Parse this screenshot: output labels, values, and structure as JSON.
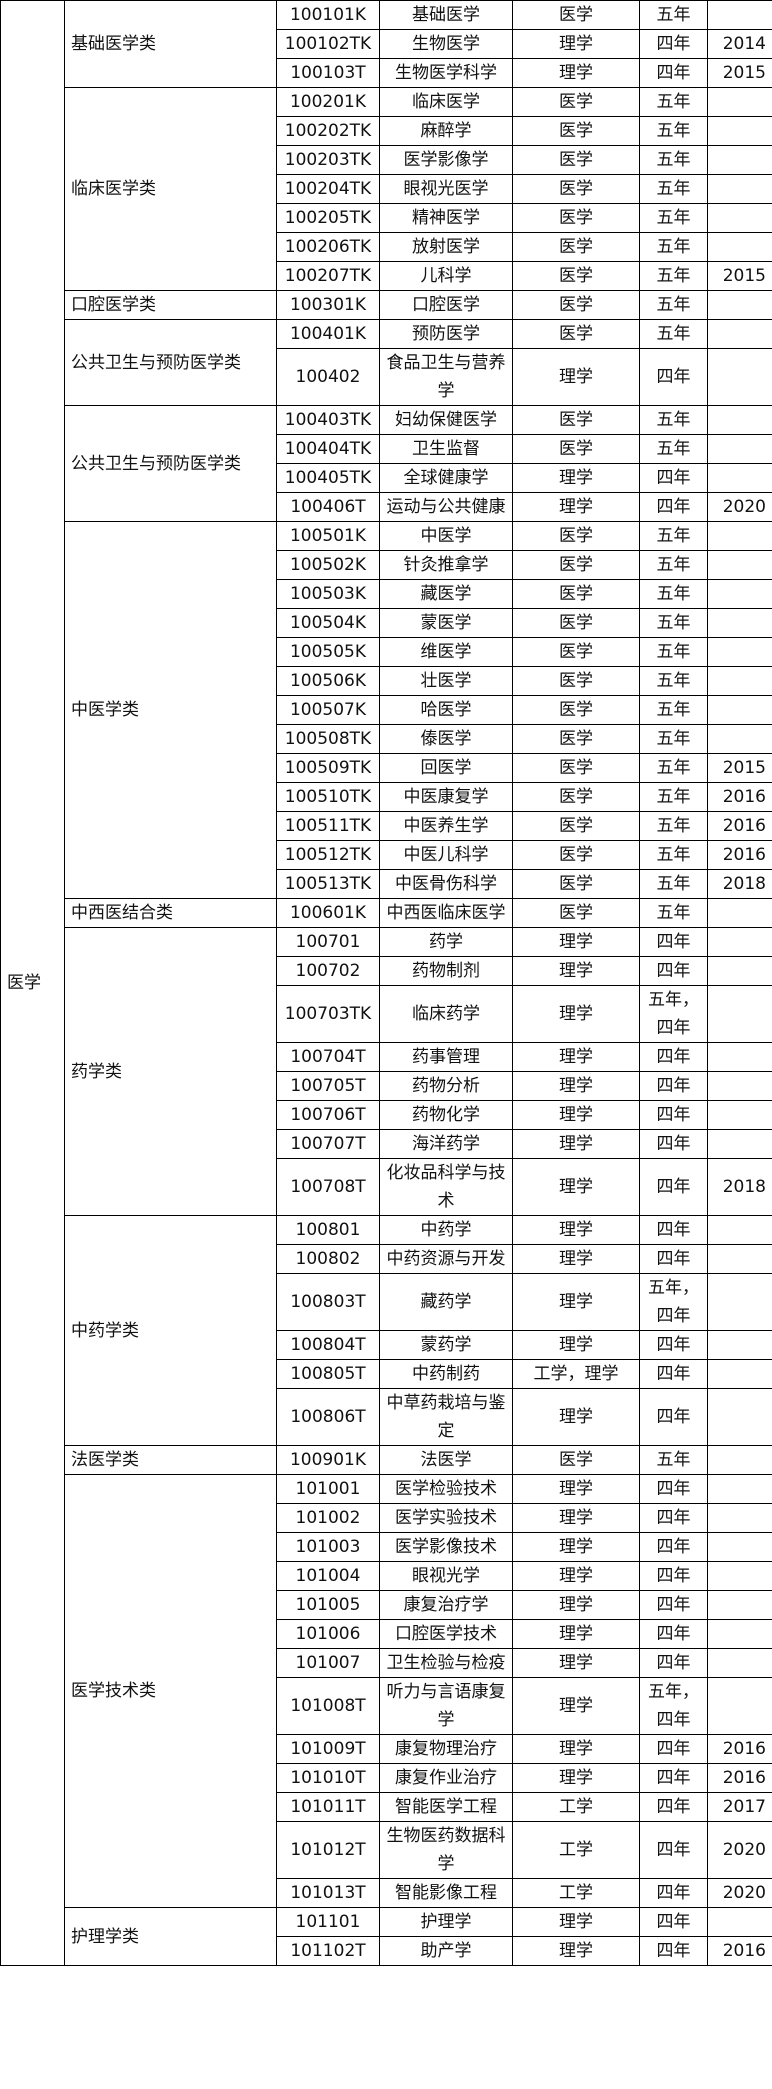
{
  "table": {
    "discipline": "医学",
    "groups": [
      {
        "category": "基础医学类",
        "rows": [
          [
            "100101K",
            "基础医学",
            "医学",
            "五年"
          ],
          [
            "100102TK",
            "生物医学",
            "理学",
            "四年",
            "2014"
          ],
          [
            "100103T",
            "生物医学科学",
            "理学",
            "四年",
            "2015"
          ]
        ]
      },
      {
        "category": "临床医学类",
        "rows": [
          [
            "100201K",
            "临床医学",
            "医学",
            "五年"
          ],
          [
            "100202TK",
            "麻醉学",
            "医学",
            "五年"
          ],
          [
            "100203TK",
            "医学影像学",
            "医学",
            "五年"
          ],
          [
            "100204TK",
            "眼视光医学",
            "医学",
            "五年"
          ],
          [
            "100205TK",
            "精神医学",
            "医学",
            "五年"
          ],
          [
            "100206TK",
            "放射医学",
            "医学",
            "五年"
          ],
          [
            "100207TK",
            "儿科学",
            "医学",
            "五年",
            "2015"
          ]
        ]
      },
      {
        "category": "口腔医学类",
        "rows": [
          [
            "100301K",
            "口腔医学",
            "医学",
            "五年"
          ]
        ]
      },
      {
        "category": "公共卫生与预防医学类",
        "rows": [
          [
            "100401K",
            "预防医学",
            "医学",
            "五年"
          ],
          [
            "100402",
            "食品卫生与营养学",
            "理学",
            "四年"
          ]
        ]
      },
      {
        "category": "公共卫生与预防医学类",
        "rows": [
          [
            "100403TK",
            "妇幼保健医学",
            "医学",
            "五年"
          ],
          [
            "100404TK",
            "卫生监督",
            "医学",
            "五年"
          ],
          [
            "100405TK",
            "全球健康学",
            "理学",
            "四年"
          ],
          [
            "100406T",
            "运动与公共健康",
            "理学",
            "四年",
            "2020"
          ]
        ]
      },
      {
        "category": "中医学类",
        "rows": [
          [
            "100501K",
            "中医学",
            "医学",
            "五年"
          ],
          [
            "100502K",
            "针灸推拿学",
            "医学",
            "五年"
          ],
          [
            "100503K",
            "藏医学",
            "医学",
            "五年"
          ],
          [
            "100504K",
            "蒙医学",
            "医学",
            "五年"
          ],
          [
            "100505K",
            "维医学",
            "医学",
            "五年"
          ],
          [
            "100506K",
            "壮医学",
            "医学",
            "五年"
          ],
          [
            "100507K",
            "哈医学",
            "医学",
            "五年"
          ],
          [
            "100508TK",
            "傣医学",
            "医学",
            "五年"
          ],
          [
            "100509TK",
            "回医学",
            "医学",
            "五年",
            "2015"
          ],
          [
            "100510TK",
            "中医康复学",
            "医学",
            "五年",
            "2016"
          ],
          [
            "100511TK",
            "中医养生学",
            "医学",
            "五年",
            "2016"
          ],
          [
            "100512TK",
            "中医儿科学",
            "医学",
            "五年",
            "2016"
          ],
          [
            "100513TK",
            "中医骨伤科学",
            "医学",
            "五年",
            "2018"
          ]
        ]
      },
      {
        "category": "中西医结合类",
        "rows": [
          [
            "100601K",
            "中西医临床医学",
            "医学",
            "五年"
          ]
        ]
      },
      {
        "category": "药学类",
        "rows": [
          [
            "100701",
            "药学",
            "理学",
            "四年"
          ],
          [
            "100702",
            "药物制剂",
            "理学",
            "四年"
          ],
          [
            "100703TK",
            "临床药学",
            "理学",
            "五年，四年"
          ],
          [
            "100704T",
            "药事管理",
            "理学",
            "四年"
          ],
          [
            "100705T",
            "药物分析",
            "理学",
            "四年"
          ],
          [
            "100706T",
            "药物化学",
            "理学",
            "四年"
          ],
          [
            "100707T",
            "海洋药学",
            "理学",
            "四年"
          ],
          [
            "100708T",
            "化妆品科学与技术",
            "理学",
            "四年",
            "2018"
          ]
        ]
      },
      {
        "category": "中药学类",
        "rows": [
          [
            "100801",
            "中药学",
            "理学",
            "四年"
          ],
          [
            "100802",
            "中药资源与开发",
            "理学",
            "四年"
          ],
          [
            "100803T",
            "藏药学",
            "理学",
            "五年，四年"
          ],
          [
            "100804T",
            "蒙药学",
            "理学",
            "四年"
          ],
          [
            "100805T",
            "中药制药",
            "工学，理学",
            "四年"
          ],
          [
            "100806T",
            "中草药栽培与鉴定",
            "理学",
            "四年"
          ]
        ]
      },
      {
        "category": "法医学类",
        "rows": [
          [
            "100901K",
            "法医学",
            "医学",
            "五年"
          ]
        ]
      },
      {
        "category": "医学技术类",
        "rows": [
          [
            "101001",
            "医学检验技术",
            "理学",
            "四年"
          ],
          [
            "101002",
            "医学实验技术",
            "理学",
            "四年"
          ],
          [
            "101003",
            "医学影像技术",
            "理学",
            "四年"
          ],
          [
            "101004",
            "眼视光学",
            "理学",
            "四年"
          ],
          [
            "101005",
            "康复治疗学",
            "理学",
            "四年"
          ],
          [
            "101006",
            "口腔医学技术",
            "理学",
            "四年"
          ],
          [
            "101007",
            "卫生检验与检疫",
            "理学",
            "四年"
          ],
          [
            "101008T",
            "听力与言语康复学",
            "理学",
            "五年，四年"
          ],
          [
            "101009T",
            "康复物理治疗",
            "理学",
            "四年",
            "2016"
          ],
          [
            "101010T",
            "康复作业治疗",
            "理学",
            "四年",
            "2016"
          ],
          [
            "101011T",
            "智能医学工程",
            "工学",
            "四年",
            "2017"
          ],
          [
            "101012T",
            "生物医药数据科学",
            "工学",
            "四年",
            "2020"
          ],
          [
            "101013T",
            "智能影像工程",
            "工学",
            "四年",
            "2020"
          ]
        ]
      },
      {
        "category": "护理学类",
        "rows": [
          [
            "101101",
            "护理学",
            "理学",
            "四年"
          ],
          [
            "101102T",
            "助产学",
            "理学",
            "四年",
            "2016"
          ]
        ]
      }
    ]
  }
}
